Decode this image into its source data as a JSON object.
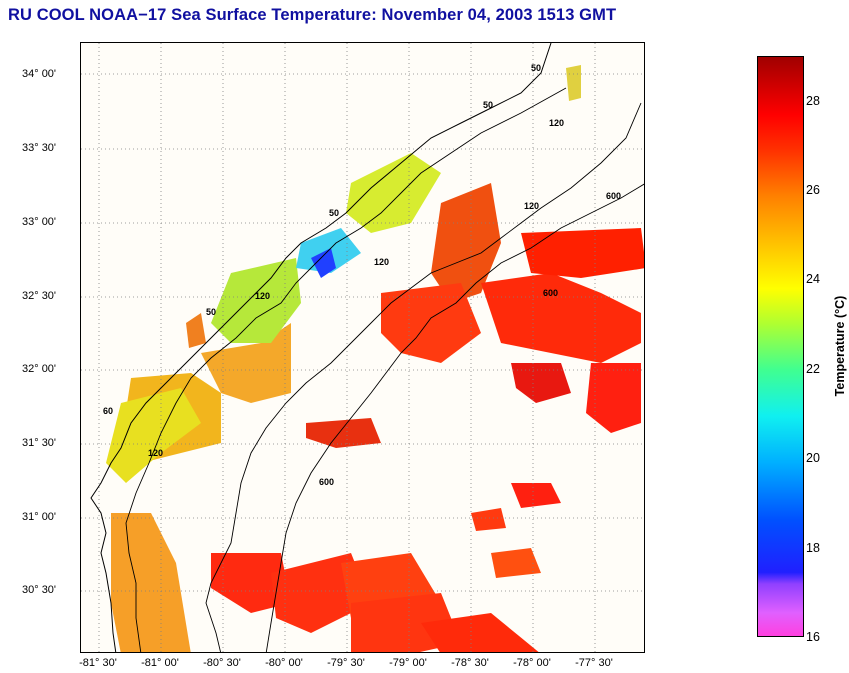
{
  "title": "RU COOL  NOAA−17  Sea Surface Temperature:  November 04, 2003 1513 GMT",
  "lat_labels": [
    "34° 00'",
    "33° 30'",
    "33° 00'",
    "32° 30'",
    "32° 00'",
    "31° 30'",
    "31° 00'",
    "30° 30'"
  ],
  "lon_labels": [
    "-81° 30'",
    "-81° 00'",
    "-80° 30'",
    "-80° 00'",
    "-79° 30'",
    "-79° 00'",
    "-78° 30'",
    "-78° 00'",
    "-77° 30'"
  ],
  "isobath_labels": [
    "50",
    "50",
    "50",
    "50",
    "60",
    "120",
    "120",
    "120",
    "120",
    "120",
    "600",
    "600",
    "600"
  ],
  "colorbar": {
    "label": "Temperature (°C)",
    "ticks": [
      "28",
      "26",
      "24",
      "22",
      "20",
      "18",
      "16"
    ],
    "min": 16,
    "max": 29
  }
}
